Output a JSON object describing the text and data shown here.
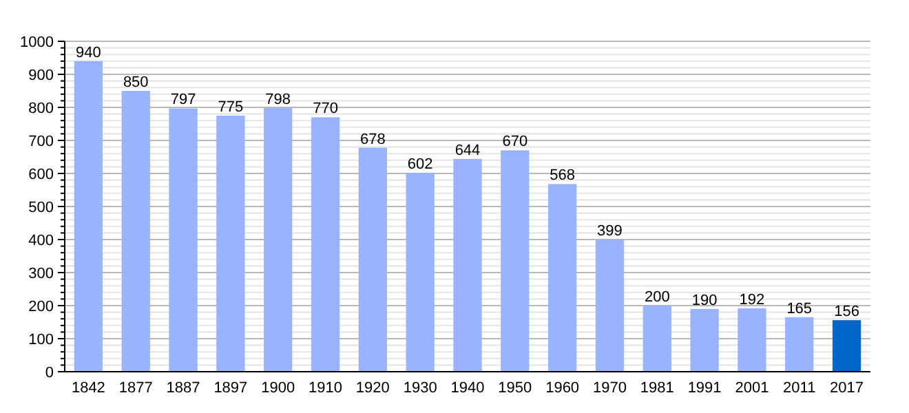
{
  "chart_data": {
    "type": "bar",
    "categories": [
      "1842",
      "1877",
      "1887",
      "1897",
      "1900",
      "1910",
      "1920",
      "1930",
      "1940",
      "1950",
      "1960",
      "1970",
      "1981",
      "1991",
      "2001",
      "2011",
      "2017"
    ],
    "values": [
      940,
      850,
      797,
      775,
      798,
      770,
      678,
      602,
      644,
      670,
      568,
      399,
      200,
      190,
      192,
      165,
      156
    ],
    "colors": [
      "#99b3ff",
      "#99b3ff",
      "#99b3ff",
      "#99b3ff",
      "#99b3ff",
      "#99b3ff",
      "#99b3ff",
      "#99b3ff",
      "#99b3ff",
      "#99b3ff",
      "#99b3ff",
      "#99b3ff",
      "#99b3ff",
      "#99b3ff",
      "#99b3ff",
      "#99b3ff",
      "#0066cc"
    ],
    "ylim": [
      0,
      1000
    ],
    "yticks": [
      0,
      {
        "value": 20,
        "label": null
      },
      {
        "value": 40,
        "label": null
      },
      {
        "value": 60,
        "label": null
      },
      {
        "value": 80,
        "label": null
      },
      100,
      {
        "value": 120,
        "label": null
      },
      {
        "value": 140,
        "label": null
      },
      {
        "value": 160,
        "label": null
      },
      {
        "value": 180,
        "label": null
      },
      200,
      {
        "value": 220,
        "label": null
      },
      {
        "value": 240,
        "label": null
      },
      {
        "value": 260,
        "label": null
      },
      {
        "value": 280,
        "label": null
      },
      300,
      {
        "value": 320,
        "label": null
      },
      {
        "value": 340,
        "label": null
      },
      {
        "value": 360,
        "label": null
      },
      {
        "value": 380,
        "label": null
      },
      400,
      {
        "value": 420,
        "label": null
      },
      {
        "value": 440,
        "label": null
      },
      {
        "value": 460,
        "label": null
      },
      {
        "value": 480,
        "label": null
      },
      500,
      {
        "value": 520,
        "label": null
      },
      {
        "value": 540,
        "label": null
      },
      {
        "value": 560,
        "label": null
      },
      {
        "value": 580,
        "label": null
      },
      600,
      {
        "value": 620,
        "label": null
      },
      {
        "value": 640,
        "label": null
      },
      {
        "value": 660,
        "label": null
      },
      {
        "value": 680,
        "label": null
      },
      700,
      {
        "value": 720,
        "label": null
      },
      {
        "value": 740,
        "label": null
      },
      {
        "value": 760,
        "label": null
      },
      {
        "value": 780,
        "label": null
      },
      800,
      {
        "value": 820,
        "label": null
      },
      {
        "value": 840,
        "label": null
      },
      {
        "value": 860,
        "label": null
      },
      {
        "value": 880,
        "label": null
      },
      900,
      {
        "value": 920,
        "label": null
      },
      {
        "value": 940,
        "label": null
      },
      {
        "value": 960,
        "label": null
      },
      {
        "value": 980,
        "label": null
      },
      1000
    ],
    "grid": "y",
    "data_labels": true
  }
}
